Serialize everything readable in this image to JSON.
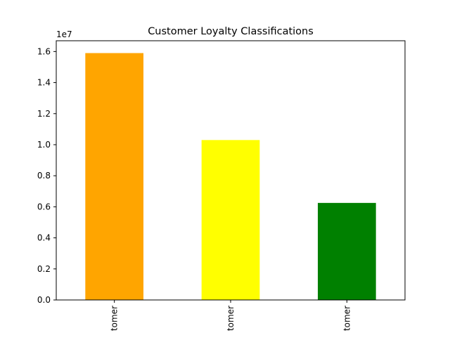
{
  "chart_data": {
    "type": "bar",
    "title": "Customer Loyalty Classifications",
    "xlabel": "",
    "ylabel": "",
    "categories": [
      "tomer",
      "tomer",
      "tomer"
    ],
    "values": [
      15900000,
      10300000,
      6250000
    ],
    "colors": [
      "#ffa500",
      "#ffff00",
      "#008000"
    ],
    "y_offset_label": "1e7",
    "y_tick_values": [
      0,
      2000000,
      4000000,
      6000000,
      8000000,
      10000000,
      12000000,
      14000000,
      16000000
    ],
    "y_tick_labels": [
      "0.0",
      "0.2",
      "0.4",
      "0.6",
      "0.8",
      "1.0",
      "1.2",
      "1.4",
      "1.6"
    ],
    "ylim": [
      0,
      16695000
    ],
    "grid": false,
    "legend": "none"
  }
}
